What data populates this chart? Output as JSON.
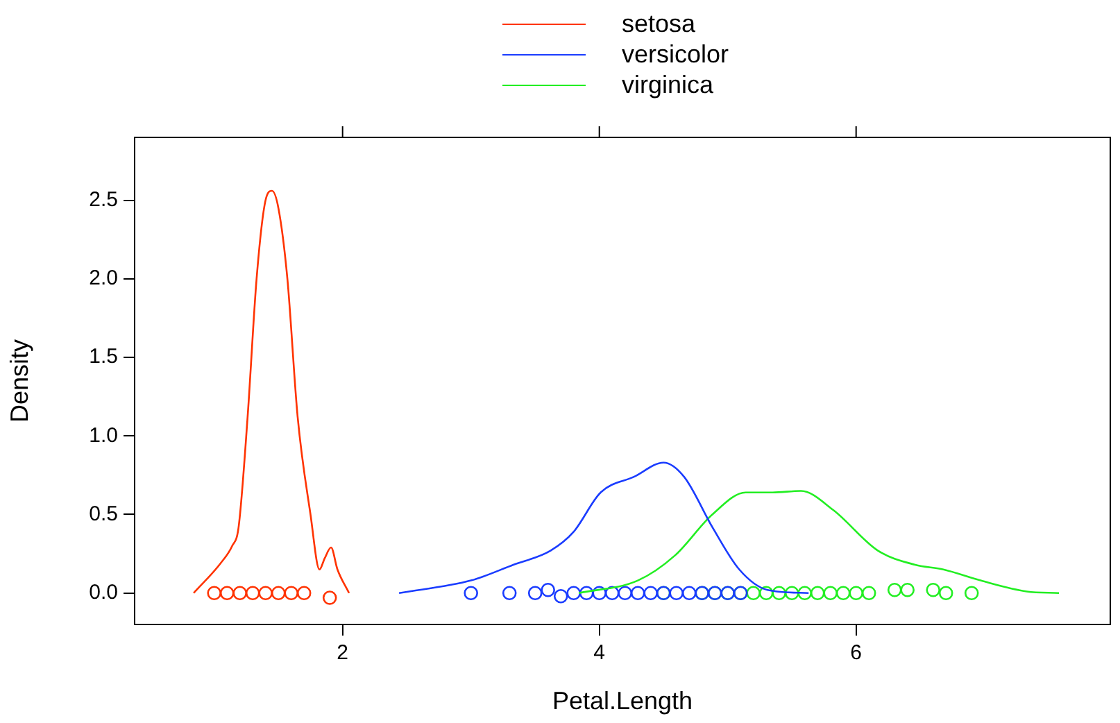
{
  "chart_data": {
    "type": "line",
    "xlabel": "Petal.Length",
    "ylabel": "Density",
    "legend": "top",
    "grid": false,
    "xlim": [
      0.38,
      7.98
    ],
    "xticks": [
      2,
      4,
      6
    ],
    "ylim": [
      -0.2,
      2.9
    ],
    "yticks": [
      {
        "value": 0,
        "label": "0.0"
      },
      {
        "value": 0.5,
        "label": "0.5"
      },
      {
        "value": 1,
        "label": "1.0"
      },
      {
        "value": 1.5,
        "label": "1.5"
      },
      {
        "value": 2,
        "label": "2.0"
      },
      {
        "value": 2.5,
        "label": "2.5"
      }
    ],
    "series": [
      {
        "name": "setosa",
        "color": "#ff3300",
        "marker": "none",
        "x": [
          0.84,
          1.05,
          1.14,
          1.19,
          1.26,
          1.33,
          1.4,
          1.45,
          1.5,
          1.57,
          1.65,
          1.75,
          1.82,
          1.86,
          1.91,
          1.96,
          2.05
        ],
        "values": [
          0,
          0.19,
          0.3,
          0.42,
          1.12,
          2.0,
          2.5,
          2.56,
          2.45,
          2.0,
          1.12,
          0.5,
          0.15,
          0.22,
          0.29,
          0.15,
          0
        ]
      },
      {
        "name": "versicolor",
        "color": "#1a3cff",
        "marker": "none",
        "x": [
          2.44,
          3.0,
          3.33,
          3.62,
          3.8,
          4.01,
          4.27,
          4.5,
          4.66,
          4.88,
          5.09,
          5.31,
          5.63
        ],
        "values": [
          0,
          0.08,
          0.18,
          0.27,
          0.39,
          0.64,
          0.74,
          0.83,
          0.74,
          0.42,
          0.15,
          0.02,
          0
        ]
      },
      {
        "name": "virginica",
        "color": "#22ee22",
        "marker": "none",
        "x": [
          3.84,
          4.3,
          4.59,
          4.88,
          5.14,
          5.35,
          5.57,
          5.82,
          6.17,
          6.46,
          6.68,
          6.97,
          7.33,
          7.58
        ],
        "values": [
          0,
          0.08,
          0.24,
          0.5,
          0.64,
          0.64,
          0.65,
          0.53,
          0.27,
          0.18,
          0.15,
          0.08,
          0.01,
          0
        ]
      },
      {
        "type": "scatter",
        "color": "#ff3300",
        "marker": "circle",
        "x": [
          1.0,
          1.1,
          1.2,
          1.3,
          1.4,
          1.5,
          1.6,
          1.7,
          1.9
        ],
        "values": [
          0,
          0,
          0,
          0,
          0,
          0,
          0,
          0,
          -0.03
        ]
      },
      {
        "type": "scatter",
        "color": "#1a3cff",
        "marker": "circle",
        "x": [
          3.0,
          3.3,
          3.5,
          3.6,
          3.7,
          3.8,
          3.9,
          4.0,
          4.1,
          4.2,
          4.3,
          4.4,
          4.5,
          4.6,
          4.7,
          4.8,
          4.9,
          5.0,
          5.1
        ],
        "values": [
          0,
          0,
          0,
          0.02,
          -0.02,
          0,
          0,
          0,
          0,
          0,
          0,
          0,
          0,
          0,
          0,
          0,
          0,
          0,
          0
        ]
      },
      {
        "type": "scatter",
        "color": "#22ee22",
        "marker": "circle",
        "x": [
          4.5,
          4.8,
          4.9,
          5.0,
          5.1,
          5.2,
          5.3,
          5.4,
          5.5,
          5.6,
          5.7,
          5.8,
          5.9,
          6.0,
          6.1,
          6.3,
          6.4,
          6.6,
          6.7,
          6.9
        ],
        "values": [
          0,
          0,
          0,
          0,
          0,
          0,
          0,
          0,
          0,
          0,
          0,
          0,
          0,
          0,
          0,
          0.02,
          0.02,
          0.02,
          0,
          0
        ]
      }
    ]
  }
}
